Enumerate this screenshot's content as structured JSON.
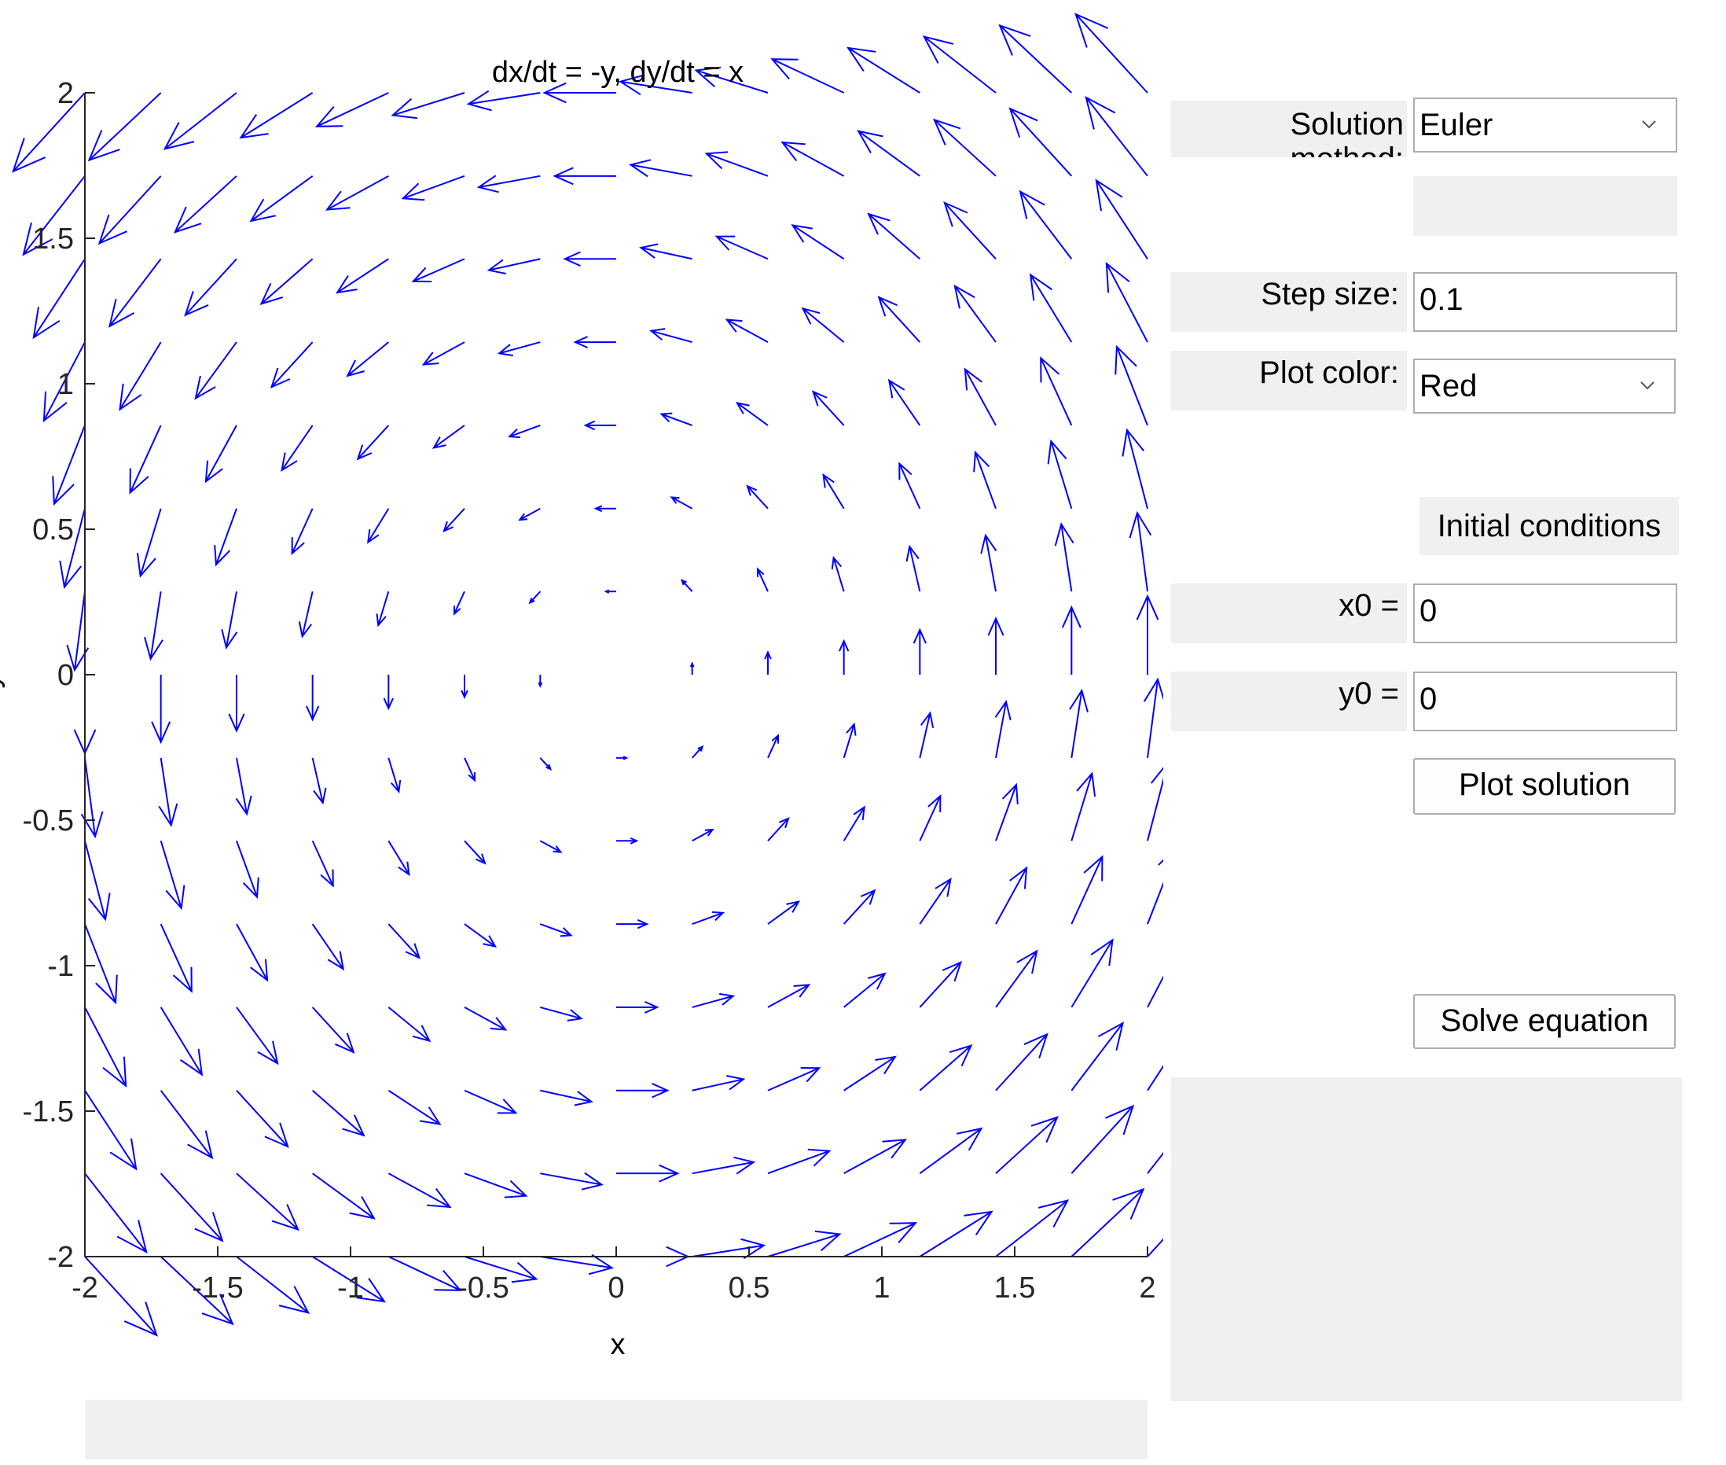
{
  "plot": {
    "title": "dx/dt = -y, dy/dt = x",
    "xlabel": "x",
    "ylabel": "y",
    "x_ticks": [
      "-2",
      "-1.5",
      "-1",
      "-0.5",
      "0",
      "0.5",
      "1",
      "1.5",
      "2"
    ],
    "y_ticks": [
      "2",
      "1.5",
      "1",
      "0.5",
      "0",
      "-0.5",
      "-1",
      "-1.5",
      "-2"
    ],
    "arrow_color": "#0000ff"
  },
  "chart_data": {
    "type": "quiver",
    "title": "dx/dt = -y, dy/dt = x",
    "xlabel": "x",
    "ylabel": "y",
    "xlim": [
      -2,
      2
    ],
    "ylim": [
      -2,
      2
    ],
    "grid_x": [
      -2.0,
      -1.714,
      -1.429,
      -1.143,
      -0.857,
      -0.571,
      -0.286,
      0.0,
      0.286,
      0.571,
      0.857,
      1.143,
      1.429,
      1.714,
      2.0
    ],
    "grid_y": [
      -2.0,
      -1.714,
      -1.429,
      -1.143,
      -0.857,
      -0.571,
      -0.286,
      0.0,
      0.286,
      0.571,
      0.857,
      1.143,
      1.429,
      1.714,
      2.0
    ],
    "u": "-y",
    "v": "x"
  },
  "controls": {
    "solution_method_label": "Solution method:",
    "solution_method_value": "Euler",
    "step_size_label": "Step size:",
    "step_size_value": "0.1",
    "plot_color_label": "Plot color:",
    "plot_color_value": "Red",
    "initial_conditions_header": "Initial conditions",
    "x0_label": "x0 =",
    "x0_value": "0",
    "y0_label": "y0 =",
    "y0_value": "0",
    "plot_solution_button": "Plot solution",
    "solve_equation_button": "Solve equation"
  }
}
